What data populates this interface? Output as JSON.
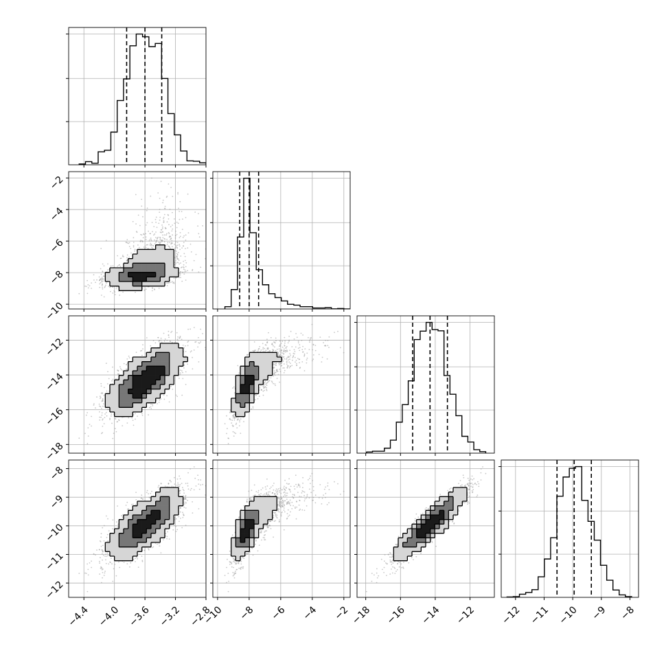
{
  "chart_data": {
    "type": "corner",
    "grid": true,
    "parameters": [
      {
        "range": [
          -4.6,
          -2.8
        ],
        "ticks": [
          -4.4,
          -4.0,
          -3.6,
          -3.2,
          -2.8
        ],
        "tick_labels": [
          "−4.4",
          "−4.0",
          "−3.6",
          "−3.2",
          "−2.8"
        ],
        "quantiles": [
          -3.84,
          -3.6,
          -3.38
        ],
        "mean": -3.6,
        "sd": 0.24,
        "skew": 0
      },
      {
        "range": [
          -10.3,
          -1.6
        ],
        "ticks": [
          -10,
          -8,
          -6,
          -4,
          -2
        ],
        "tick_labels": [
          "−10",
          "−8",
          "−6",
          "−4",
          "−2"
        ],
        "quantiles": [
          -8.6,
          -8.0,
          -7.4
        ],
        "mean": -8.0,
        "sd": 0.45,
        "skew": 1
      },
      {
        "range": [
          -18.5,
          -10.6
        ],
        "ticks": [
          -18,
          -16,
          -14,
          -12
        ],
        "tick_labels": [
          "−18",
          "−16",
          "−14",
          "−12"
        ],
        "quantiles": [
          -15.3,
          -14.3,
          -13.3
        ],
        "mean": -14.3,
        "sd": 1.0,
        "skew": 0
      },
      {
        "range": [
          -12.5,
          -7.7
        ],
        "ticks": [
          -12,
          -11,
          -10,
          -9,
          -8
        ],
        "tick_labels": [
          "−12",
          "−11",
          "−10",
          "−9",
          "−8"
        ],
        "quantiles": [
          -10.55,
          -9.95,
          -9.35
        ],
        "mean": -9.95,
        "sd": 0.6,
        "skew": 0
      }
    ],
    "correlations": [
      [
        1.0,
        0.5,
        0.7,
        0.75
      ],
      [
        0.5,
        1.0,
        0.8,
        0.8
      ],
      [
        0.7,
        0.8,
        1.0,
        0.92
      ],
      [
        0.75,
        0.8,
        0.92,
        1.0
      ]
    ],
    "histogram_bins": 20,
    "scatter_points": 2600,
    "colors": {
      "line": "#000000",
      "scatter": "#999999",
      "grid": "#b0b0b0"
    }
  }
}
